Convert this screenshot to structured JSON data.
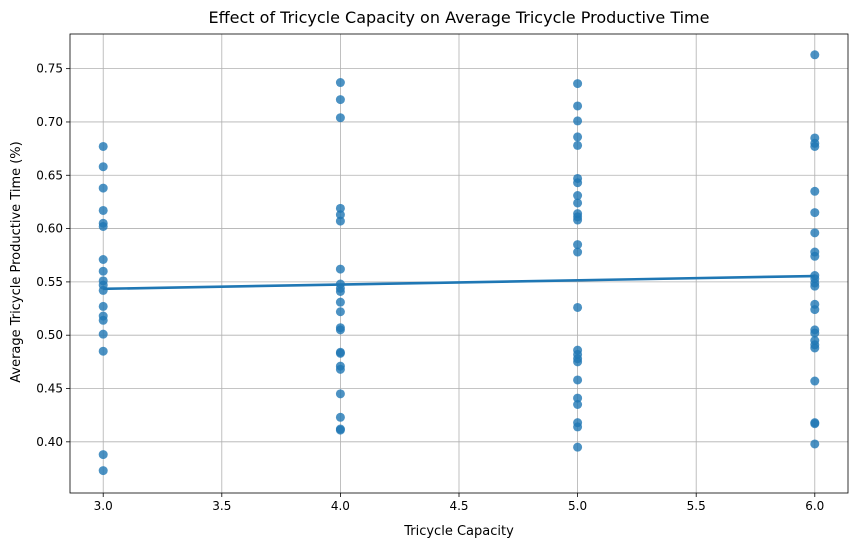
{
  "chart_data": {
    "type": "scatter",
    "title": "Effect of Tricycle Capacity on Average Tricycle Productive Time",
    "xlabel": "Tricycle Capacity",
    "ylabel": "Average Tricycle Productive Time (%)",
    "xlim": [
      2.86,
      6.14
    ],
    "ylim": [
      0.352,
      0.7825
    ],
    "xticks": [
      "3.0",
      "3.5",
      "4.0",
      "4.5",
      "5.0",
      "5.5",
      "6.0"
    ],
    "yticks": [
      "0.40",
      "0.45",
      "0.50",
      "0.55",
      "0.60",
      "0.65",
      "0.70",
      "0.75"
    ],
    "grid": true,
    "point_color": "#1f77b4",
    "points": [
      {
        "x": 3,
        "y": 0.677
      },
      {
        "x": 3,
        "y": 0.658
      },
      {
        "x": 3,
        "y": 0.638
      },
      {
        "x": 3,
        "y": 0.617
      },
      {
        "x": 3,
        "y": 0.605
      },
      {
        "x": 3,
        "y": 0.602
      },
      {
        "x": 3,
        "y": 0.571
      },
      {
        "x": 3,
        "y": 0.56
      },
      {
        "x": 3,
        "y": 0.551
      },
      {
        "x": 3,
        "y": 0.547
      },
      {
        "x": 3,
        "y": 0.542
      },
      {
        "x": 3,
        "y": 0.527
      },
      {
        "x": 3,
        "y": 0.518
      },
      {
        "x": 3,
        "y": 0.514
      },
      {
        "x": 3,
        "y": 0.501
      },
      {
        "x": 3,
        "y": 0.485
      },
      {
        "x": 3,
        "y": 0.388
      },
      {
        "x": 3,
        "y": 0.373
      },
      {
        "x": 4,
        "y": 0.737
      },
      {
        "x": 4,
        "y": 0.721
      },
      {
        "x": 4,
        "y": 0.704
      },
      {
        "x": 4,
        "y": 0.619
      },
      {
        "x": 4,
        "y": 0.613
      },
      {
        "x": 4,
        "y": 0.607
      },
      {
        "x": 4,
        "y": 0.562
      },
      {
        "x": 4,
        "y": 0.548
      },
      {
        "x": 4,
        "y": 0.544
      },
      {
        "x": 4,
        "y": 0.541
      },
      {
        "x": 4,
        "y": 0.531
      },
      {
        "x": 4,
        "y": 0.522
      },
      {
        "x": 4,
        "y": 0.507
      },
      {
        "x": 4,
        "y": 0.505
      },
      {
        "x": 4,
        "y": 0.484
      },
      {
        "x": 4,
        "y": 0.483
      },
      {
        "x": 4,
        "y": 0.471
      },
      {
        "x": 4,
        "y": 0.468
      },
      {
        "x": 4,
        "y": 0.445
      },
      {
        "x": 4,
        "y": 0.423
      },
      {
        "x": 4,
        "y": 0.412
      },
      {
        "x": 4,
        "y": 0.411
      },
      {
        "x": 5,
        "y": 0.736
      },
      {
        "x": 5,
        "y": 0.715
      },
      {
        "x": 5,
        "y": 0.701
      },
      {
        "x": 5,
        "y": 0.686
      },
      {
        "x": 5,
        "y": 0.678
      },
      {
        "x": 5,
        "y": 0.647
      },
      {
        "x": 5,
        "y": 0.643
      },
      {
        "x": 5,
        "y": 0.631
      },
      {
        "x": 5,
        "y": 0.624
      },
      {
        "x": 5,
        "y": 0.614
      },
      {
        "x": 5,
        "y": 0.611
      },
      {
        "x": 5,
        "y": 0.608
      },
      {
        "x": 5,
        "y": 0.585
      },
      {
        "x": 5,
        "y": 0.578
      },
      {
        "x": 5,
        "y": 0.526
      },
      {
        "x": 5,
        "y": 0.486
      },
      {
        "x": 5,
        "y": 0.482
      },
      {
        "x": 5,
        "y": 0.478
      },
      {
        "x": 5,
        "y": 0.475
      },
      {
        "x": 5,
        "y": 0.458
      },
      {
        "x": 5,
        "y": 0.441
      },
      {
        "x": 5,
        "y": 0.435
      },
      {
        "x": 5,
        "y": 0.418
      },
      {
        "x": 5,
        "y": 0.414
      },
      {
        "x": 5,
        "y": 0.395
      },
      {
        "x": 6,
        "y": 0.763
      },
      {
        "x": 6,
        "y": 0.685
      },
      {
        "x": 6,
        "y": 0.68
      },
      {
        "x": 6,
        "y": 0.677
      },
      {
        "x": 6,
        "y": 0.635
      },
      {
        "x": 6,
        "y": 0.615
      },
      {
        "x": 6,
        "y": 0.596
      },
      {
        "x": 6,
        "y": 0.578
      },
      {
        "x": 6,
        "y": 0.574
      },
      {
        "x": 6,
        "y": 0.556
      },
      {
        "x": 6,
        "y": 0.553
      },
      {
        "x": 6,
        "y": 0.549
      },
      {
        "x": 6,
        "y": 0.546
      },
      {
        "x": 6,
        "y": 0.529
      },
      {
        "x": 6,
        "y": 0.524
      },
      {
        "x": 6,
        "y": 0.505
      },
      {
        "x": 6,
        "y": 0.502
      },
      {
        "x": 6,
        "y": 0.495
      },
      {
        "x": 6,
        "y": 0.491
      },
      {
        "x": 6,
        "y": 0.488
      },
      {
        "x": 6,
        "y": 0.457
      },
      {
        "x": 6,
        "y": 0.418
      },
      {
        "x": 6,
        "y": 0.417
      },
      {
        "x": 6,
        "y": 0.398
      }
    ],
    "regression_line": {
      "color": "#1f77b4",
      "x": [
        3.0,
        6.0
      ],
      "y": [
        0.5435,
        0.5555
      ]
    }
  }
}
